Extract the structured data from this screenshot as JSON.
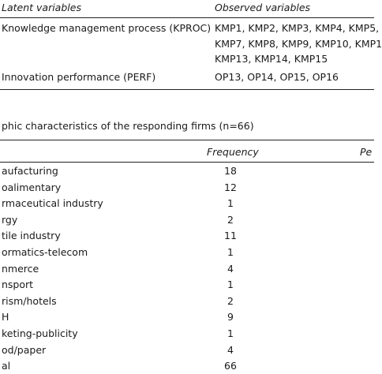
{
  "top_table": {
    "headers": [
      "Latent variables",
      "Observed variables"
    ],
    "rows": [
      {
        "latent": "Knowledge  management process (KPROC)",
        "observed": [
          "KMP1, KMP2, KMP3, KMP4, KMP5,",
          "KMP7, KMP8, KMP9, KMP10, KMP1",
          "KMP13, KMP14, KMP15"
        ]
      },
      {
        "latent": "Innovation performance (PERF)",
        "observed": [
          "OP13, OP14, OP15, OP16"
        ]
      }
    ]
  },
  "caption": "phic characteristics of the responding firms (n=66)",
  "table": {
    "headers": [
      "Frequency",
      "Pe"
    ],
    "rows": [
      [
        "aufacturing",
        "18"
      ],
      [
        "oalimentary",
        "12"
      ],
      [
        "rmaceutical industry",
        "1"
      ],
      [
        "rgy",
        "2"
      ],
      [
        "tile industry",
        "11"
      ],
      [
        "ormatics-telecom",
        "1"
      ],
      [
        "nmerce",
        "4"
      ],
      [
        "nsport",
        "1"
      ],
      [
        "rism/hotels",
        "2"
      ],
      [
        "H",
        "9"
      ],
      [
        "keting-publicity",
        "1"
      ],
      [
        "od/paper",
        "4"
      ],
      [
        "al",
        "66"
      ]
    ]
  }
}
